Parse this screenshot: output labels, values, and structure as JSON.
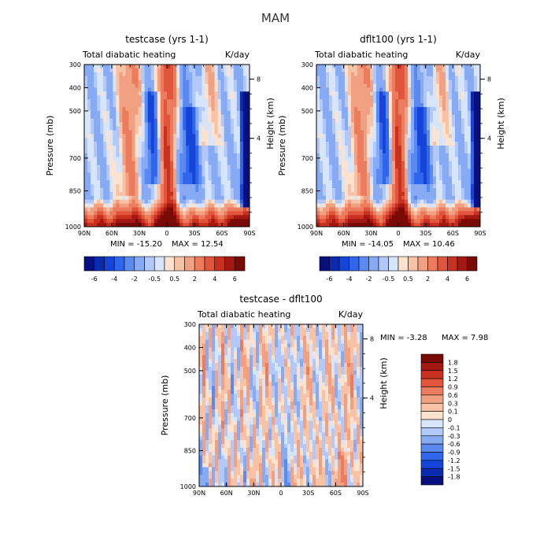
{
  "figure_title": "MAM",
  "chart_data": [
    {
      "type": "heatmap",
      "title": "testcase (yrs 1-1)",
      "left_string": "Total diabatic heating",
      "right_string": "K/day",
      "ylabel": "Pressure (mb)",
      "ylabel_right": "Height (km)",
      "x_ticks": [
        "90N",
        "60N",
        "30N",
        "0",
        "30S",
        "60S",
        "90S"
      ],
      "y_ticks": [
        "300",
        "400",
        "500",
        "700",
        "850",
        "1000"
      ],
      "y_right_ticks": [
        "8",
        "4"
      ],
      "ylim": [
        1000,
        300
      ],
      "xlim": [
        90,
        -90
      ],
      "min_label": "MIN = -15.20",
      "max_label": "MAX = 12.54",
      "colorbar_labels": [
        "-6",
        "-4",
        "-2",
        "-0.5",
        "0.5",
        "2",
        "4",
        "6"
      ],
      "field": "base"
    },
    {
      "type": "heatmap",
      "title": "dflt100 (yrs 1-1)",
      "left_string": "Total diabatic heating",
      "right_string": "K/day",
      "ylabel": "Pressure (mb)",
      "ylabel_right": "Height (km)",
      "x_ticks": [
        "90N",
        "60N",
        "30N",
        "0",
        "30S",
        "60S",
        "90S"
      ],
      "y_ticks": [
        "300",
        "400",
        "500",
        "700",
        "850",
        "1000"
      ],
      "y_right_ticks": [
        "8",
        "4"
      ],
      "ylim": [
        1000,
        300
      ],
      "xlim": [
        90,
        -90
      ],
      "min_label": "MIN = -14.05",
      "max_label": "MAX = 10.46",
      "colorbar_labels": [
        "-6",
        "-4",
        "-2",
        "-0.5",
        "0.5",
        "2",
        "4",
        "6"
      ],
      "field": "base"
    },
    {
      "type": "heatmap",
      "title": "testcase - dflt100",
      "left_string": "Total diabatic heating",
      "right_string": "K/day",
      "ylabel": "Pressure (mb)",
      "ylabel_right": "Height (km)",
      "x_ticks": [
        "90N",
        "60N",
        "30N",
        "0",
        "30S",
        "60S",
        "90S"
      ],
      "y_ticks": [
        "300",
        "400",
        "500",
        "700",
        "850",
        "1000"
      ],
      "y_right_ticks": [
        "8",
        "4"
      ],
      "ylim": [
        1000,
        300
      ],
      "xlim": [
        90,
        -90
      ],
      "min_label": "MIN = -3.28",
      "max_label": "MAX = 7.98",
      "colorbar_labels": [
        "1.8",
        "1.5",
        "1.2",
        "0.9",
        "0.6",
        "0.3",
        "0.1",
        "0",
        "-0.1",
        "-0.3",
        "-0.6",
        "-0.9",
        "-1.2",
        "-1.5",
        "-1.8"
      ],
      "field": "diff"
    }
  ],
  "colormap": [
    "#08107f",
    "#0a2bb0",
    "#1545d8",
    "#2f66ec",
    "#5a8af0",
    "#86aaf4",
    "#b2c8f8",
    "#d7e5fb",
    "#fde2d0",
    "#f7c2a6",
    "#f1a082",
    "#ec7c5e",
    "#e0553c",
    "#c8301f",
    "#a31810",
    "#7a0a06"
  ]
}
